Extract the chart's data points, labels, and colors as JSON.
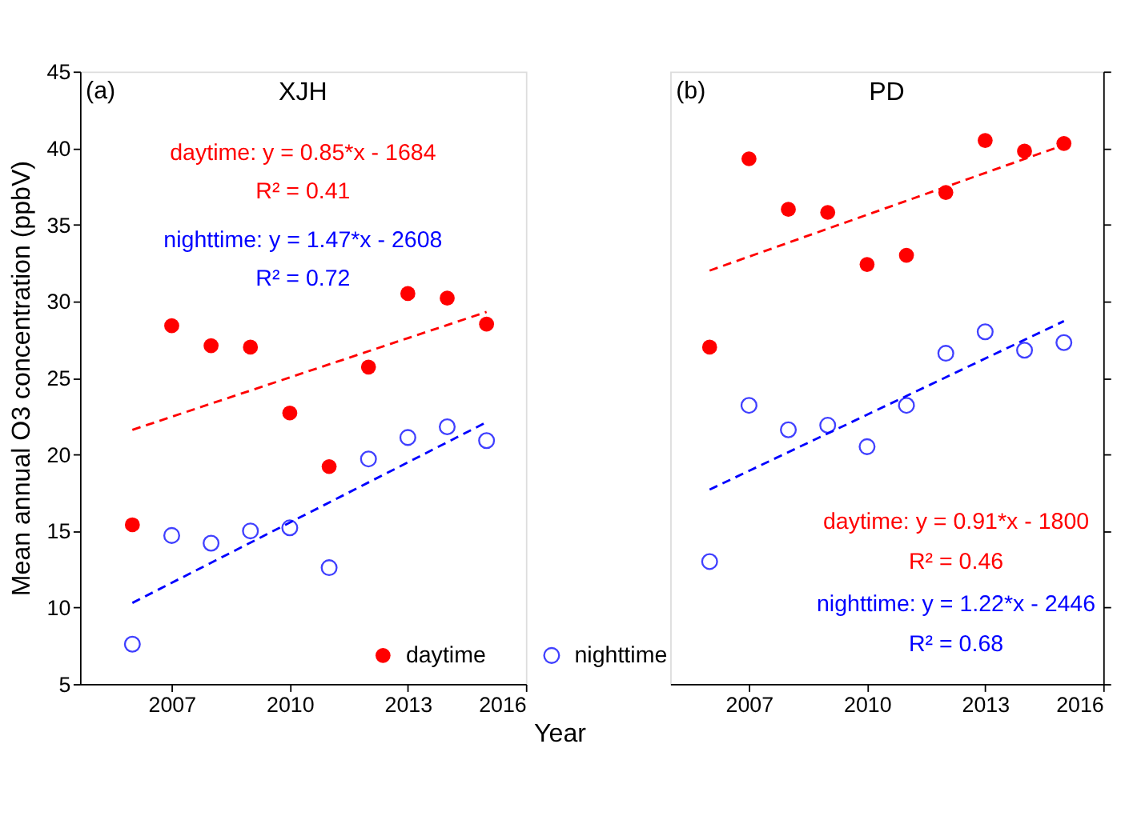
{
  "chart_data": [
    {
      "type": "scatter",
      "title": "XJH",
      "xlabel": "Year",
      "ylabel": "Mean annual O3 concentration (ppbV)",
      "xlim": [
        2004.67,
        2016
      ],
      "xticks": [
        2007,
        2010,
        2013,
        2016
      ],
      "ylim": [
        5,
        45
      ],
      "yticks": [
        5,
        10,
        15,
        20,
        25,
        30,
        35,
        40,
        45
      ],
      "grid": false,
      "legend": "bottom",
      "annotations": [
        "(a)",
        "daytime: y = 0.85*x - 1684",
        "R² = 0.41",
        "nighttime: y = 1.47*x - 2608",
        "R² = 0.72"
      ],
      "series": [
        {
          "name": "daytime",
          "color": "#ff0000",
          "marker": "circle",
          "x": [
            2006,
            2007,
            2008,
            2009,
            2010,
            2011,
            2012,
            2013,
            2014,
            2015
          ],
          "values": [
            15.4,
            28.4,
            27.1,
            27.0,
            22.7,
            19.2,
            25.7,
            30.5,
            30.2,
            28.5
          ]
        },
        {
          "name": "nighttime",
          "color": "#4040ff",
          "marker": "circle",
          "x": [
            2006,
            2007,
            2008,
            2009,
            2010,
            2011,
            2012,
            2013,
            2014,
            2015
          ],
          "values": [
            7.6,
            14.7,
            14.2,
            15.0,
            15.2,
            12.6,
            19.7,
            21.1,
            21.8,
            20.9
          ]
        },
        {
          "type": "line",
          "color": "#ff0000",
          "line_style": "dashed",
          "x": [
            2006,
            2015
          ],
          "values": [
            21.6,
            29.3
          ]
        },
        {
          "type": "line",
          "color": "#0000ff",
          "line_style": "dashed",
          "x": [
            2006,
            2015
          ],
          "values": [
            10.3,
            22.1
          ]
        }
      ]
    },
    {
      "type": "scatter",
      "title": "PD",
      "xlim": [
        2005,
        2016
      ],
      "xticks": [
        2007,
        2010,
        2013,
        2016
      ],
      "ylim": [
        5,
        45
      ],
      "yticks": [
        5,
        10,
        15,
        20,
        25,
        30,
        35,
        40,
        45
      ],
      "grid": false,
      "tick_labels": "x",
      "annotations": [
        "(b)",
        "daytime: y = 0.91*x - 1800",
        "R² = 0.46",
        "nighttime: y = 1.22*x - 2446",
        "R² = 0.68"
      ],
      "series": [
        {
          "color": "#ff0000",
          "marker": "circle",
          "x": [
            2006,
            2007,
            2008,
            2009,
            2010,
            2011,
            2012,
            2013,
            2014,
            2015
          ],
          "values": [
            27.0,
            39.3,
            36.0,
            35.8,
            32.4,
            33.0,
            37.1,
            40.5,
            39.8,
            40.3
          ]
        },
        {
          "color": "#4040ff",
          "marker": "circle",
          "x": [
            2006,
            2007,
            2008,
            2009,
            2010,
            2011,
            2012,
            2013,
            2014,
            2015
          ],
          "values": [
            13.0,
            23.2,
            21.6,
            21.9,
            20.5,
            23.2,
            26.6,
            28.0,
            26.8,
            27.3
          ]
        },
        {
          "type": "line",
          "color": "#ff0000",
          "line_style": "dashed",
          "x": [
            2006,
            2015
          ],
          "values": [
            32.0,
            40.2
          ]
        },
        {
          "type": "line",
          "color": "#0000ff",
          "line_style": "dashed",
          "x": [
            2006,
            2015
          ],
          "values": [
            17.7,
            28.7
          ]
        }
      ]
    }
  ]
}
